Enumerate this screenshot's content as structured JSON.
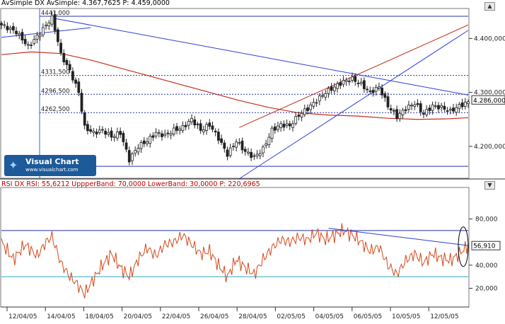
{
  "header_top": {
    "name": "AvSimple  DX AvSimple:",
    "value": "4.367,7625",
    "p_label": "P:",
    "p_value": "4.459,0000"
  },
  "header_bottom": {
    "name": "RSI  DX RSI:",
    "value": "55,6212",
    "upper": "UppperBand: 70,0000",
    "lower": "LowerBand: 30,0000",
    "p": "P: 220,6965"
  },
  "logo": {
    "title": "Visual Chart",
    "url": "www.visualchart.com"
  },
  "controls": {
    "up": "▲",
    "down": "▼"
  },
  "chart_data": [
    {
      "type": "candlestick",
      "ylim": [
        4150,
        4455
      ],
      "yticks": [
        "4.400,000",
        "4.300,000",
        "4.200,000"
      ],
      "ytick_values": [
        4400,
        4300,
        4200
      ],
      "last_price_label": "4.286,000",
      "last_price": 4286,
      "levels": [
        {
          "label": "4441,000",
          "value": 4441
        },
        {
          "label": "4331,500",
          "value": 4331.5
        },
        {
          "label": "4296,500",
          "value": 4296.5
        },
        {
          "label": "4262,500",
          "value": 4262.5
        },
        {
          "label": "",
          "value": 4163
        }
      ],
      "x_labels": [
        "12/04/05",
        "14/04/05",
        "18/04/05",
        "20/04/05",
        "22/04/05",
        "26/04/05",
        "28/04/05",
        "02/05/05",
        "04/05/05",
        "06/05/05",
        "10/05/05",
        "12/05/05"
      ],
      "close_path": [
        [
          0,
          4425
        ],
        [
          5,
          4412
        ],
        [
          9,
          4385
        ],
        [
          13,
          4410
        ],
        [
          16,
          4432
        ],
        [
          17,
          4438
        ],
        [
          19,
          4395
        ],
        [
          20,
          4370
        ],
        [
          23,
          4340
        ],
        [
          26,
          4300
        ],
        [
          28,
          4235
        ],
        [
          31,
          4225
        ],
        [
          34,
          4230
        ],
        [
          37,
          4218
        ],
        [
          40,
          4225
        ],
        [
          43,
          4175
        ],
        [
          46,
          4200
        ],
        [
          49,
          4210
        ],
        [
          52,
          4225
        ],
        [
          55,
          4220
        ],
        [
          58,
          4230
        ],
        [
          61,
          4235
        ],
        [
          64,
          4250
        ],
        [
          67,
          4230
        ],
        [
          70,
          4240
        ],
        [
          73,
          4215
        ],
        [
          76,
          4185
        ],
        [
          79,
          4210
        ],
        [
          82,
          4190
        ],
        [
          85,
          4180
        ],
        [
          88,
          4195
        ],
        [
          91,
          4230
        ],
        [
          94,
          4240
        ],
        [
          97,
          4238
        ],
        [
          100,
          4258
        ],
        [
          103,
          4270
        ],
        [
          106,
          4285
        ],
        [
          109,
          4300
        ],
        [
          112,
          4310
        ],
        [
          115,
          4320
        ],
        [
          118,
          4325
        ],
        [
          121,
          4315
        ],
        [
          124,
          4300
        ],
        [
          127,
          4310
        ],
        [
          130,
          4275
        ],
        [
          133,
          4255
        ],
        [
          136,
          4270
        ],
        [
          139,
          4280
        ],
        [
          142,
          4260
        ],
        [
          145,
          4275
        ],
        [
          148,
          4272
        ],
        [
          151,
          4265
        ],
        [
          154,
          4275
        ],
        [
          157,
          4282
        ]
      ],
      "moving_average": [
        [
          0,
          4370
        ],
        [
          10,
          4375
        ],
        [
          20,
          4372
        ],
        [
          30,
          4360
        ],
        [
          40,
          4345
        ],
        [
          50,
          4330
        ],
        [
          60,
          4315
        ],
        [
          70,
          4300
        ],
        [
          80,
          4285
        ],
        [
          90,
          4272
        ],
        [
          100,
          4262
        ],
        [
          110,
          4258
        ],
        [
          120,
          4256
        ],
        [
          130,
          4252
        ],
        [
          140,
          4250
        ],
        [
          150,
          4251
        ],
        [
          157,
          4253
        ]
      ]
    },
    {
      "type": "line",
      "name": "RSI",
      "ylim": [
        5,
        95
      ],
      "yticks": [
        "80,000",
        "40,000",
        "20,000"
      ],
      "ytick_values": [
        80,
        40,
        20
      ],
      "last_value_label": "56,910",
      "last_value": 56.91,
      "upper_band": 70,
      "lower_band": 30,
      "values_path": [
        [
          0,
          60
        ],
        [
          4,
          45
        ],
        [
          8,
          58
        ],
        [
          12,
          48
        ],
        [
          15,
          60
        ],
        [
          17,
          65
        ],
        [
          20,
          42
        ],
        [
          23,
          30
        ],
        [
          25,
          25
        ],
        [
          28,
          15
        ],
        [
          31,
          28
        ],
        [
          34,
          40
        ],
        [
          37,
          50
        ],
        [
          40,
          38
        ],
        [
          43,
          30
        ],
        [
          46,
          45
        ],
        [
          49,
          55
        ],
        [
          52,
          48
        ],
        [
          55,
          58
        ],
        [
          58,
          60
        ],
        [
          61,
          66
        ],
        [
          64,
          58
        ],
        [
          67,
          50
        ],
        [
          70,
          52
        ],
        [
          73,
          40
        ],
        [
          76,
          30
        ],
        [
          79,
          45
        ],
        [
          82,
          38
        ],
        [
          85,
          32
        ],
        [
          88,
          45
        ],
        [
          91,
          55
        ],
        [
          94,
          62
        ],
        [
          97,
          60
        ],
        [
          100,
          64
        ],
        [
          103,
          62
        ],
        [
          106,
          68
        ],
        [
          109,
          62
        ],
        [
          112,
          66
        ],
        [
          115,
          70
        ],
        [
          118,
          66
        ],
        [
          121,
          60
        ],
        [
          124,
          52
        ],
        [
          127,
          56
        ],
        [
          130,
          40
        ],
        [
          133,
          32
        ],
        [
          136,
          44
        ],
        [
          139,
          50
        ],
        [
          142,
          42
        ],
        [
          145,
          50
        ],
        [
          148,
          46
        ],
        [
          151,
          44
        ],
        [
          154,
          50
        ],
        [
          157,
          57
        ]
      ]
    }
  ]
}
